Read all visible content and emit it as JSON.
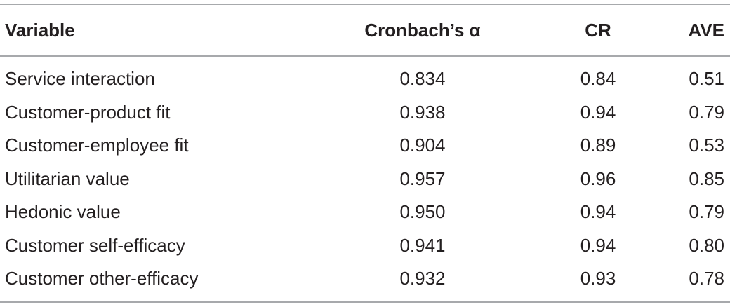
{
  "table": {
    "headers": [
      "Variable",
      "Cronbach’s α",
      "CR",
      "AVE"
    ],
    "rows": [
      [
        "Service interaction",
        "0.834",
        "0.84",
        "0.51"
      ],
      [
        "Customer-product fit",
        "0.938",
        "0.94",
        "0.79"
      ],
      [
        "Customer-employee fit",
        "0.904",
        "0.89",
        "0.53"
      ],
      [
        "Utilitarian value",
        "0.957",
        "0.96",
        "0.85"
      ],
      [
        "Hedonic value",
        "0.950",
        "0.94",
        "0.79"
      ],
      [
        "Customer self-efficacy",
        "0.941",
        "0.94",
        "0.80"
      ],
      [
        "Customer other-efficacy",
        "0.932",
        "0.93",
        "0.78"
      ]
    ]
  }
}
